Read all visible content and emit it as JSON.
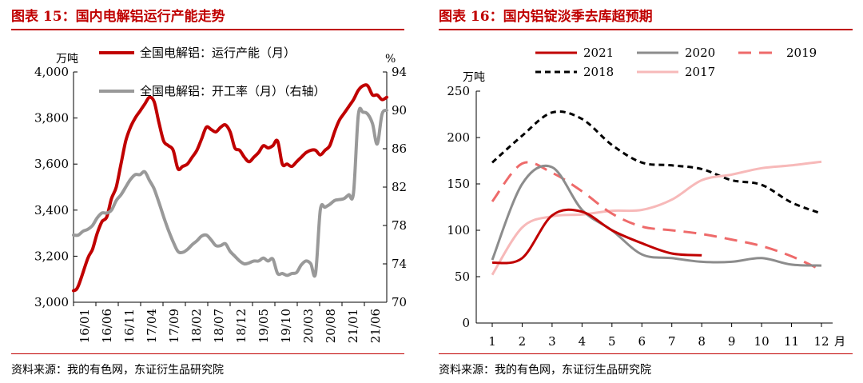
{
  "left": {
    "title": "图表 15：国内电解铝运行产能走势",
    "source": "资料来源：我的有色网，东证衍生品研究院"
  },
  "right": {
    "title": "图表 16：国内铝锭淡季去库超预期",
    "source": "资料来源：我的有色网，东证衍生品研究院"
  },
  "colors": {
    "brand": "#c00000",
    "capacity": "#c00000",
    "rate": "#999999"
  },
  "chart_data": [
    {
      "type": "line",
      "ylabel": "万吨",
      "y2label": "%",
      "ylim": [
        3000,
        4000
      ],
      "yticks": [
        "3,000",
        "3,200",
        "3,400",
        "3,600",
        "3,800",
        "4,000"
      ],
      "y2lim": [
        70,
        94
      ],
      "y2ticks": [
        "70",
        "74",
        "78",
        "82",
        "86",
        "90",
        "94"
      ],
      "x_dates": [
        "16/01",
        "16/06",
        "16/11",
        "17/04",
        "17/09",
        "18/02",
        "18/07",
        "18/12",
        "19/05",
        "19/10",
        "20/03",
        "20/08",
        "21/01",
        "21/06"
      ],
      "grid": false,
      "legend_position": "top",
      "series": [
        {
          "name": "全国电解铝：运行产能（月）",
          "axis": "left",
          "points": [
            [
              0,
              3050
            ],
            [
              1,
              3070
            ],
            [
              3,
              3190
            ],
            [
              4,
              3230
            ],
            [
              5,
              3300
            ],
            [
              6,
              3350
            ],
            [
              7,
              3370
            ],
            [
              8,
              3450
            ],
            [
              9,
              3500
            ],
            [
              10,
              3600
            ],
            [
              11,
              3700
            ],
            [
              12,
              3760
            ],
            [
              13,
              3800
            ],
            [
              14,
              3830
            ],
            [
              15,
              3860
            ],
            [
              16,
              3890
            ],
            [
              17,
              3870
            ],
            [
              18,
              3780
            ],
            [
              19,
              3700
            ],
            [
              20,
              3680
            ],
            [
              21,
              3660
            ],
            [
              22,
              3580
            ],
            [
              23,
              3590
            ],
            [
              24,
              3600
            ],
            [
              25,
              3630
            ],
            [
              26,
              3660
            ],
            [
              27,
              3710
            ],
            [
              28,
              3760
            ],
            [
              29,
              3750
            ],
            [
              30,
              3740
            ],
            [
              31,
              3760
            ],
            [
              32,
              3770
            ],
            [
              33,
              3740
            ],
            [
              34,
              3670
            ],
            [
              35,
              3660
            ],
            [
              36,
              3630
            ],
            [
              37,
              3610
            ],
            [
              38,
              3630
            ],
            [
              39,
              3650
            ],
            [
              40,
              3680
            ],
            [
              41,
              3670
            ],
            [
              42,
              3680
            ],
            [
              43,
              3700
            ],
            [
              44,
              3600
            ],
            [
              45,
              3600
            ],
            [
              46,
              3590
            ],
            [
              47,
              3610
            ],
            [
              48,
              3630
            ],
            [
              49,
              3650
            ],
            [
              50,
              3660
            ],
            [
              51,
              3660
            ],
            [
              52,
              3640
            ],
            [
              53,
              3660
            ],
            [
              54,
              3680
            ],
            [
              55,
              3740
            ],
            [
              56,
              3790
            ],
            [
              57,
              3820
            ],
            [
              58,
              3850
            ],
            [
              59,
              3880
            ],
            [
              60,
              3920
            ],
            [
              61,
              3940
            ],
            [
              62,
              3940
            ],
            [
              63,
              3900
            ],
            [
              64,
              3900
            ],
            [
              65,
              3880
            ],
            [
              66,
              3890
            ]
          ]
        },
        {
          "name": "全国电解铝：开工率（月）（右轴）",
          "axis": "right",
          "points": [
            [
              0,
              77.0
            ],
            [
              1,
              77.0
            ],
            [
              2,
              77.4
            ],
            [
              3,
              77.6
            ],
            [
              4,
              78.0
            ],
            [
              5,
              78.8
            ],
            [
              6,
              79.3
            ],
            [
              7,
              79.3
            ],
            [
              8,
              79.6
            ],
            [
              9,
              80.6
            ],
            [
              10,
              81.2
            ],
            [
              11,
              82.0
            ],
            [
              12,
              82.8
            ],
            [
              13,
              83.3
            ],
            [
              14,
              83.3
            ],
            [
              15,
              83.6
            ],
            [
              16,
              82.7
            ],
            [
              17,
              81.8
            ],
            [
              18,
              80.4
            ],
            [
              19,
              78.9
            ],
            [
              20,
              77.5
            ],
            [
              21,
              76.3
            ],
            [
              22,
              75.3
            ],
            [
              23,
              75.2
            ],
            [
              24,
              75.5
            ],
            [
              25,
              76.0
            ],
            [
              26,
              76.4
            ],
            [
              27,
              76.9
            ],
            [
              28,
              77.0
            ],
            [
              29,
              76.5
            ],
            [
              30,
              75.9
            ],
            [
              31,
              75.9
            ],
            [
              32,
              76.1
            ],
            [
              33,
              75.3
            ],
            [
              34,
              74.8
            ],
            [
              35,
              74.3
            ],
            [
              36,
              74.0
            ],
            [
              37,
              74.1
            ],
            [
              38,
              74.3
            ],
            [
              39,
              74.3
            ],
            [
              40,
              74.6
            ],
            [
              41,
              74.3
            ],
            [
              42,
              74.5
            ],
            [
              43,
              73.0
            ],
            [
              44,
              73.0
            ],
            [
              45,
              72.8
            ],
            [
              46,
              73.0
            ],
            [
              47,
              73.1
            ],
            [
              48,
              73.9
            ],
            [
              49,
              74.3
            ],
            [
              50,
              74.0
            ],
            [
              51,
              73.0
            ],
            [
              52,
              79.6
            ],
            [
              53,
              79.9
            ],
            [
              54,
              80.2
            ],
            [
              55,
              80.6
            ],
            [
              56,
              80.7
            ],
            [
              57,
              80.8
            ],
            [
              58,
              81.2
            ],
            [
              59,
              81.4
            ],
            [
              60,
              89.5
            ],
            [
              61,
              89.8
            ],
            [
              62,
              89.6
            ],
            [
              63,
              88.6
            ],
            [
              64,
              86.5
            ],
            [
              65,
              89.6
            ],
            [
              66,
              90.0
            ]
          ]
        }
      ]
    },
    {
      "type": "line",
      "ylabel": "万吨",
      "xlabel": "月",
      "ylim": [
        0,
        250
      ],
      "yticks": [
        0,
        50,
        100,
        150,
        200,
        250
      ],
      "categories": [
        "1",
        "2",
        "3",
        "4",
        "5",
        "6",
        "7",
        "8",
        "9",
        "10",
        "11",
        "12"
      ],
      "grid": false,
      "legend_position": "top",
      "series": [
        {
          "name": "2021",
          "style": "solid",
          "color": "#c00000",
          "values": [
            65,
            70,
            116,
            120,
            100,
            86,
            75,
            73,
            null,
            null,
            null,
            null
          ]
        },
        {
          "name": "2020",
          "style": "solid",
          "color": "#8c8c8c",
          "values": [
            68,
            150,
            168,
            122,
            100,
            74,
            70,
            66,
            66,
            70,
            63,
            62
          ]
        },
        {
          "name": "2019",
          "style": "dashed",
          "color": "#ee6a6a",
          "values": [
            131,
            172,
            162,
            142,
            118,
            104,
            100,
            96,
            90,
            83,
            72,
            57
          ]
        },
        {
          "name": "2018",
          "style": "dashed",
          "color": "#000000",
          "values": [
            173,
            202,
            227,
            220,
            192,
            173,
            170,
            166,
            154,
            149,
            130,
            118
          ]
        },
        {
          "name": "2017",
          "style": "solid",
          "color": "#f7b9b9",
          "values": [
            52,
            103,
            115,
            117,
            121,
            122,
            133,
            154,
            160,
            167,
            170,
            174
          ]
        }
      ]
    }
  ]
}
